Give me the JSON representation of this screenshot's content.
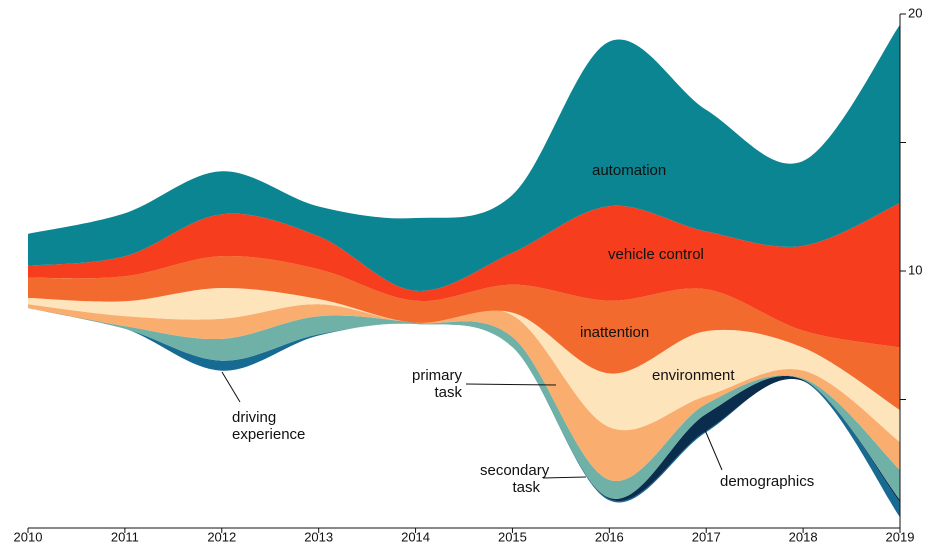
{
  "chart_data": {
    "type": "streamgraph",
    "x": [
      2010,
      2011,
      2012,
      2013,
      2014,
      2015,
      2016,
      2017,
      2018,
      2019
    ],
    "xlim": [
      2010,
      2019
    ],
    "xticks": [
      2010,
      2011,
      2012,
      2013,
      2014,
      2015,
      2016,
      2017,
      2018,
      2019
    ],
    "ylim": [
      0,
      20
    ],
    "yticks": [
      10,
      20
    ],
    "yminorticks": [
      5,
      15
    ],
    "series": [
      {
        "name": "driving experience",
        "color": "#176b93",
        "values": [
          0,
          0,
          0.39,
          0.05,
          0,
          0,
          0.05,
          0.05,
          0,
          0.58
        ]
      },
      {
        "name": "demographics",
        "color": "#0b2d4d",
        "values": [
          0,
          0,
          0,
          0,
          0,
          0,
          0.05,
          0.66,
          0.05,
          0.1
        ]
      },
      {
        "name": "secondary task",
        "color": "#6fb1a6",
        "values": [
          0,
          0.1,
          0.85,
          0.7,
          0.05,
          0.39,
          0.7,
          0.39,
          0.05,
          1.16
        ]
      },
      {
        "name": "primary task",
        "color": "#f9ae70",
        "values": [
          0.15,
          0.39,
          0.78,
          0.47,
          0,
          0.85,
          2.05,
          0.31,
          0.31,
          1.09
        ]
      },
      {
        "name": "environment",
        "color": "#fde4bb",
        "values": [
          0.25,
          0.58,
          1.2,
          0.2,
          0,
          0.1,
          2.09,
          2.52,
          0.89,
          1.24
        ]
      },
      {
        "name": "inattention",
        "color": "#f26a2e",
        "values": [
          0.78,
          0.97,
          1.24,
          1.16,
          0.85,
          1.09,
          2.83,
          1.63,
          0.66,
          2.44
        ]
      },
      {
        "name": "vehicle control",
        "color": "#f63d1e",
        "values": [
          0.47,
          0.78,
          1.63,
          1.28,
          0.39,
          1.24,
          3.68,
          2.25,
          3.3,
          5.62
        ]
      },
      {
        "name": "automation",
        "color": "#0a8591",
        "values": [
          1.24,
          1.67,
          1.67,
          1.16,
          2.83,
          2.25,
          6.4,
          4.73,
          3.3,
          6.94
        ]
      }
    ]
  }
}
